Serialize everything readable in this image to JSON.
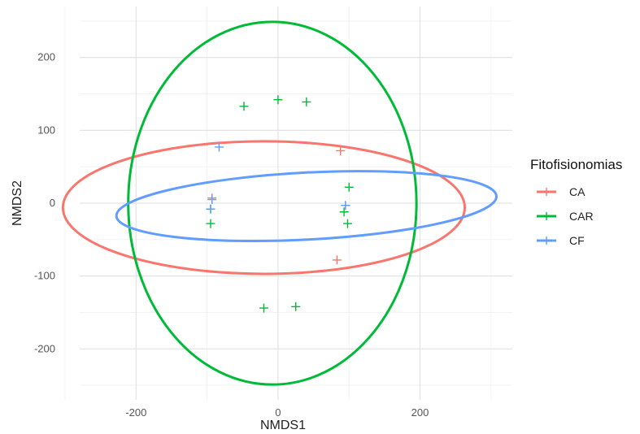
{
  "chart_data": {
    "type": "scatter",
    "xlabel": "NMDS1",
    "ylabel": "NMDS2",
    "xlim": [
      -300,
      330
    ],
    "ylim": [
      -270,
      270
    ],
    "xticks": [
      -200,
      0,
      200
    ],
    "yticks": [
      200,
      100,
      0,
      -100,
      -200
    ],
    "grid": true,
    "legend": {
      "title": "Fitofisionomias",
      "position": "right",
      "entries": [
        "CA",
        "CAR",
        "CF"
      ]
    },
    "series": [
      {
        "name": "CA",
        "color": "#F8766D",
        "points": [
          [
            -93,
            7
          ],
          [
            88,
            72
          ],
          [
            83,
            -78
          ],
          [
            95,
            -3
          ]
        ],
        "ellipse": {
          "cx": -20,
          "cy": -6,
          "rx": 283,
          "ry": 91,
          "angle": 0
        }
      },
      {
        "name": "CAR",
        "color": "#00BA38",
        "points": [
          [
            -48,
            133
          ],
          [
            0,
            142
          ],
          [
            40,
            139
          ],
          [
            -95,
            -8
          ],
          [
            -95,
            -28
          ],
          [
            100,
            22
          ],
          [
            93,
            -12
          ],
          [
            98,
            -28
          ],
          [
            -20,
            -144
          ],
          [
            25,
            -142
          ]
        ],
        "ellipse": {
          "cx": -8,
          "cy": 0,
          "rx": 203,
          "ry": 249,
          "angle": 0
        }
      },
      {
        "name": "CF",
        "color": "#619CFF",
        "points": [
          [
            -83,
            77
          ],
          [
            -93,
            5
          ],
          [
            -95,
            -8
          ],
          [
            95,
            -3
          ]
        ],
        "ellipse": {
          "cx": 40,
          "cy": -4,
          "rx": 268,
          "ry": 46,
          "angle": -3
        }
      }
    ]
  }
}
